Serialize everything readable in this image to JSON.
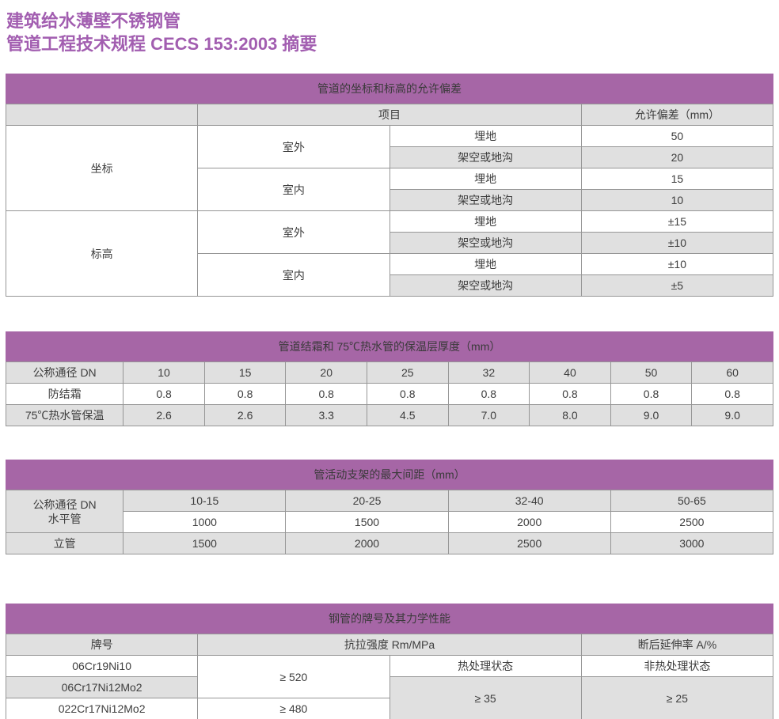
{
  "page": {
    "title_line1": "建筑给水薄壁不锈钢管",
    "title_line2": "管道工程技术规程 CECS 153:2003 摘要"
  },
  "colors": {
    "title_purple": "#a25eb0",
    "band_purple": "#a666a6",
    "row_shade_grey": "#e0e0e0",
    "border_grey": "#969696"
  },
  "table1": {
    "caption": "管道的坐标和标高的允许偏差",
    "header": {
      "project": "项目",
      "deviation": "允许偏差（mm）"
    },
    "groups": [
      {
        "name": "坐标",
        "sections": [
          {
            "name": "室外",
            "rows": [
              {
                "type": "埋地",
                "value": "50"
              },
              {
                "type": "架空或地沟",
                "value": "20"
              }
            ]
          },
          {
            "name": "室内",
            "rows": [
              {
                "type": "埋地",
                "value": "15"
              },
              {
                "type": "架空或地沟",
                "value": "10"
              }
            ]
          }
        ]
      },
      {
        "name": "标高",
        "sections": [
          {
            "name": "室外",
            "rows": [
              {
                "type": "埋地",
                "value": "±15"
              },
              {
                "type": "架空或地沟",
                "value": "±10"
              }
            ]
          },
          {
            "name": "室内",
            "rows": [
              {
                "type": "埋地",
                "value": "±10"
              },
              {
                "type": "架空或地沟",
                "value": "±5"
              }
            ]
          }
        ]
      }
    ]
  },
  "table2": {
    "caption": "管道结霜和 75℃热水管的保温层厚度（mm）",
    "header_label": "公称通径 DN",
    "dn": [
      "10",
      "15",
      "20",
      "25",
      "32",
      "40",
      "50",
      "60"
    ],
    "rows": [
      {
        "label": "防结霜",
        "values": [
          "0.8",
          "0.8",
          "0.8",
          "0.8",
          "0.8",
          "0.8",
          "0.8",
          "0.8"
        ]
      },
      {
        "label": "75℃热水管保温",
        "values": [
          "2.6",
          "2.6",
          "3.3",
          "4.5",
          "7.0",
          "8.0",
          "9.0",
          "9.0"
        ]
      }
    ]
  },
  "table3": {
    "caption": "管活动支架的最大间距（mm）",
    "header_label_line1": "公称通径 DN",
    "header_label_line2": "水平管",
    "dn_ranges": [
      "10-15",
      "20-25",
      "32-40",
      "50-65"
    ],
    "horizontal_values": [
      "1000",
      "1500",
      "2000",
      "2500"
    ],
    "riser_label": "立管",
    "riser_values": [
      "1500",
      "2000",
      "2500",
      "3000"
    ]
  },
  "table4": {
    "caption": "钢管的牌号及其力学性能",
    "header": {
      "grade": "牌号",
      "tensile": "抗拉强度 Rm/MPa",
      "elongation": "断后延伸率 A/%"
    },
    "sub_header": {
      "heat_treated": "热处理状态",
      "non_heat_treated": "非热处理状态"
    },
    "grades": [
      "06Cr19Ni10",
      "06Cr17Ni12Mo2",
      "022Cr17Ni12Mo2"
    ],
    "tensile": {
      "group1": "≥ 520",
      "group2": "≥ 480"
    },
    "elongation": {
      "heat_treated": "≥ 35",
      "non_heat_treated": "≥ 25"
    }
  }
}
